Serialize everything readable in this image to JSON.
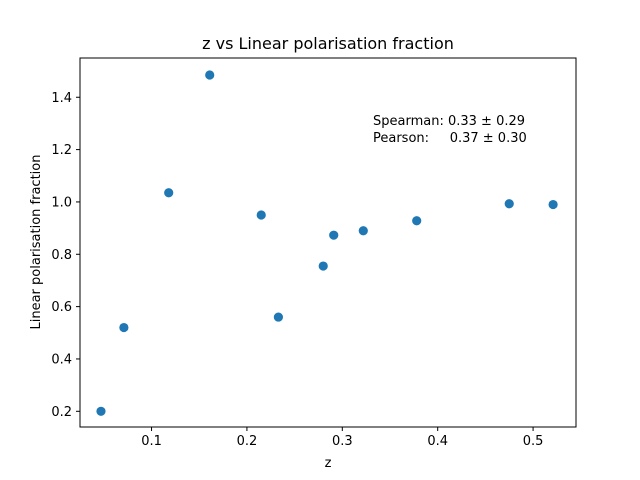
{
  "chart_data": {
    "type": "scatter",
    "title": "z vs Linear polarisation fraction",
    "xlabel": "z",
    "ylabel": "Linear polarisation fraction",
    "xlim": [
      0.025,
      0.545
    ],
    "ylim": [
      0.14,
      1.55
    ],
    "xticks": [
      0.1,
      0.2,
      0.3,
      0.4,
      0.5
    ],
    "yticks": [
      0.2,
      0.4,
      0.6,
      0.8,
      1.0,
      1.2,
      1.4
    ],
    "xtick_labels": [
      "0.1",
      "0.2",
      "0.3",
      "0.4",
      "0.5"
    ],
    "ytick_labels": [
      "0.2",
      "0.4",
      "0.6",
      "0.8",
      "1.0",
      "1.2",
      "1.4"
    ],
    "grid": false,
    "marker_color": "#1f77b4",
    "points": [
      {
        "x": 0.047,
        "y": 0.2
      },
      {
        "x": 0.071,
        "y": 0.52
      },
      {
        "x": 0.118,
        "y": 1.035
      },
      {
        "x": 0.161,
        "y": 1.485
      },
      {
        "x": 0.215,
        "y": 0.95
      },
      {
        "x": 0.233,
        "y": 0.56
      },
      {
        "x": 0.28,
        "y": 0.755
      },
      {
        "x": 0.291,
        "y": 0.873
      },
      {
        "x": 0.322,
        "y": 0.89
      },
      {
        "x": 0.378,
        "y": 0.928
      },
      {
        "x": 0.475,
        "y": 0.993
      },
      {
        "x": 0.521,
        "y": 0.99
      }
    ],
    "annotations": [
      "Spearman: 0.33 ± 0.29",
      "Pearson:     0.37 ± 0.30"
    ]
  }
}
